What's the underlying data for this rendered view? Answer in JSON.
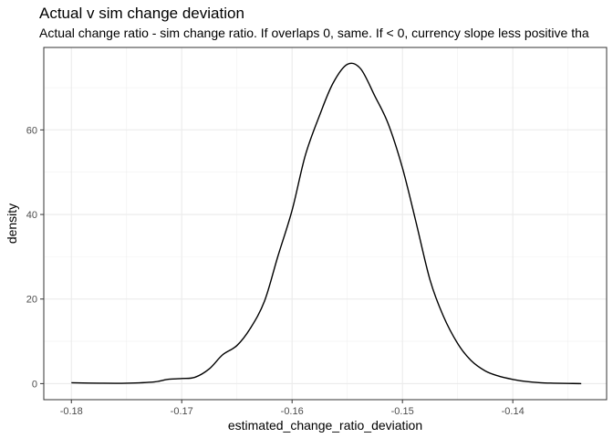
{
  "chart_data": {
    "type": "line",
    "title": "Actual v sim change deviation",
    "subtitle": "Actual change ratio - sim change ratio. If overlaps 0, same. If < 0, currency slope less positive tha",
    "xlabel": "estimated_change_ratio_deviation",
    "ylabel": "density",
    "xlim": [
      -0.1825,
      -0.1315
    ],
    "ylim": [
      -3.8,
      79.5
    ],
    "x_ticks": [
      -0.18,
      -0.17,
      -0.16,
      -0.15,
      -0.14
    ],
    "x_tick_labels": [
      "-0.18",
      "-0.17",
      "-0.16",
      "-0.15",
      "-0.14"
    ],
    "y_ticks": [
      0,
      20,
      40,
      60
    ],
    "y_tick_labels": [
      "0",
      "20",
      "40",
      "60"
    ],
    "grid": true,
    "legend": "none",
    "line_color": "#000000",
    "series": [
      {
        "x": [
          -0.18,
          -0.1775,
          -0.175,
          -0.1725,
          -0.1713,
          -0.17,
          -0.1688,
          -0.1675,
          -0.1663,
          -0.165,
          -0.1638,
          -0.1625,
          -0.1613,
          -0.16,
          -0.1588,
          -0.1575,
          -0.1563,
          -0.155,
          -0.1538,
          -0.1525,
          -0.1513,
          -0.15,
          -0.1488,
          -0.1475,
          -0.1463,
          -0.145,
          -0.1438,
          -0.1425,
          -0.1413,
          -0.14,
          -0.1388,
          -0.1375,
          -0.1363,
          -0.135,
          -0.1338
        ],
        "y": [
          0.2,
          0.1,
          0.1,
          0.4,
          1.0,
          1.2,
          1.5,
          3.5,
          6.8,
          9.0,
          13.0,
          19.5,
          30.0,
          41.0,
          54.0,
          63.5,
          71.0,
          75.5,
          74.5,
          68.0,
          61.5,
          51.0,
          38.5,
          24.5,
          16.0,
          9.5,
          5.5,
          3.0,
          1.8,
          1.0,
          0.5,
          0.2,
          0.1,
          0.05,
          0.0
        ]
      }
    ]
  }
}
